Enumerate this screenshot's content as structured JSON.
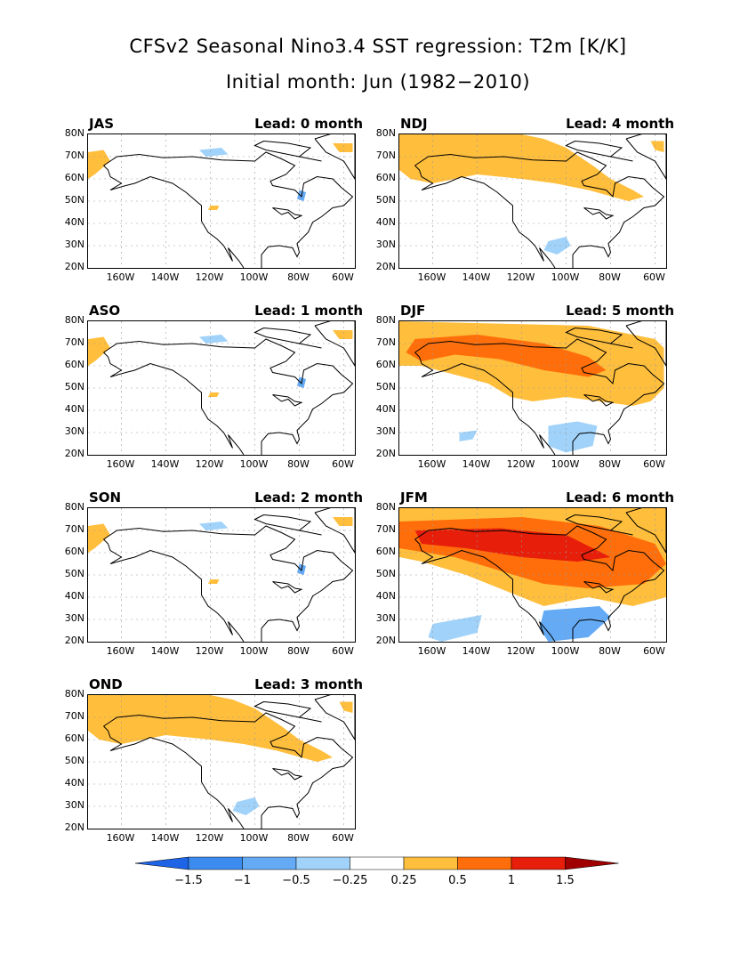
{
  "title_line1": "CFSv2 Seasonal Nino3.4 SST regression: T2m [K/K]",
  "title_line2": "Initial month: Jun (1982−2010)",
  "lat_ticks": [
    "80N",
    "70N",
    "60N",
    "50N",
    "40N",
    "30N",
    "20N"
  ],
  "lon_ticks": [
    "160W",
    "140W",
    "120W",
    "100W",
    "80W",
    "60W"
  ],
  "panels": [
    {
      "season": "JAS",
      "lead": "Lead: 0 month",
      "intensity": 0
    },
    {
      "season": "ASO",
      "lead": "Lead: 1 month",
      "intensity": 0
    },
    {
      "season": "SON",
      "lead": "Lead: 2 month",
      "intensity": 0
    },
    {
      "season": "OND",
      "lead": "Lead: 3 month",
      "intensity": 1
    },
    {
      "season": "NDJ",
      "lead": "Lead: 4 month",
      "intensity": 1
    },
    {
      "season": "DJF",
      "lead": "Lead: 5 month",
      "intensity": 2
    },
    {
      "season": "JFM",
      "lead": "Lead: 6 month",
      "intensity": 3
    }
  ],
  "colorbar": {
    "labels": [
      "−1.5",
      "−1",
      "−0.5",
      "−0.25",
      "0.25",
      "0.5",
      "1",
      "1.5"
    ],
    "colors": [
      "#1e64e6",
      "#3c8cf0",
      "#64aaf5",
      "#a0d2fa",
      "#ffffff",
      "#ffbe3c",
      "#ff6e0a",
      "#e61e0a",
      "#a00000"
    ]
  }
}
